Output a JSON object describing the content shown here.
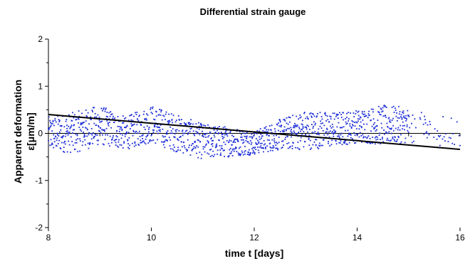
{
  "chart_data": {
    "type": "scatter",
    "title": "Differential strain gauge",
    "xlabel": "time t [days]",
    "ylabel_line1": "Apparent deformation",
    "ylabel_line2": "ε[μm/m]",
    "xlim": [
      8,
      16
    ],
    "ylim": [
      -2,
      2
    ],
    "xticks": [
      8,
      10,
      12,
      14,
      16
    ],
    "yticks": [
      -2,
      -1,
      0,
      1,
      2
    ],
    "grid": false,
    "legend": "none",
    "point_color": "#1f2fd8",
    "trendline_color": "#000000",
    "trendline": {
      "x": [
        8,
        16
      ],
      "y": [
        0.4,
        -0.34
      ]
    },
    "series": [
      {
        "sample_interval_days": 0.01,
        "band_low": [
          [
            8.0,
            -0.38
          ],
          [
            8.5,
            -0.42
          ],
          [
            9.0,
            -0.25
          ],
          [
            9.5,
            -0.35
          ],
          [
            10.0,
            -0.2
          ],
          [
            10.5,
            -0.4
          ],
          [
            11.0,
            -0.55
          ],
          [
            11.5,
            -0.5
          ],
          [
            12.0,
            -0.45
          ],
          [
            12.5,
            -0.35
          ],
          [
            13.0,
            -0.35
          ],
          [
            13.5,
            -0.3
          ],
          [
            14.0,
            -0.2
          ],
          [
            14.5,
            -0.25
          ],
          [
            15.0,
            -0.2
          ],
          [
            15.5,
            -0.3
          ],
          [
            16.0,
            -0.35
          ]
        ],
        "band_high": [
          [
            8.0,
            0.35
          ],
          [
            8.5,
            0.45
          ],
          [
            9.0,
            0.6
          ],
          [
            9.5,
            0.35
          ],
          [
            10.0,
            0.6
          ],
          [
            10.5,
            0.4
          ],
          [
            11.0,
            0.2
          ],
          [
            11.5,
            0.15
          ],
          [
            12.0,
            0.05
          ],
          [
            12.5,
            0.3
          ],
          [
            13.0,
            0.5
          ],
          [
            13.5,
            0.45
          ],
          [
            14.0,
            0.5
          ],
          [
            14.5,
            0.6
          ],
          [
            15.0,
            0.55
          ],
          [
            15.5,
            0.35
          ],
          [
            16.0,
            0.45
          ]
        ],
        "sparse_after": 15.0
      }
    ]
  }
}
